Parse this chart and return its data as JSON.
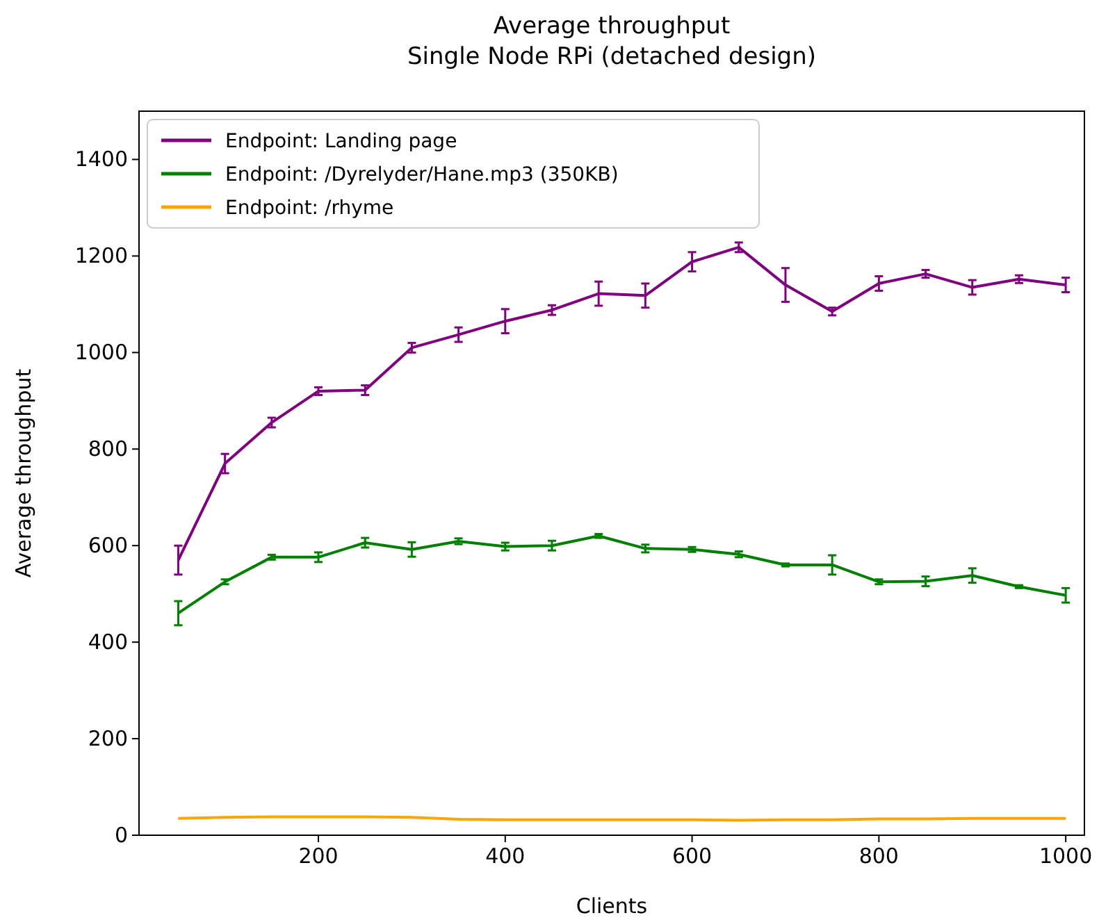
{
  "chart_data": {
    "type": "line",
    "title": "Average throughput\nSingle Node RPi (detached design)",
    "xlabel": "Clients",
    "ylabel": "Average throughput",
    "x": [
      50,
      100,
      150,
      200,
      250,
      300,
      350,
      400,
      450,
      500,
      550,
      600,
      650,
      700,
      750,
      800,
      850,
      900,
      950,
      1000
    ],
    "xlim": [
      8,
      1020
    ],
    "ylim": [
      0,
      1500
    ],
    "xticks": [
      200,
      400,
      600,
      800,
      1000
    ],
    "yticks": [
      0,
      200,
      400,
      600,
      800,
      1000,
      1200,
      1400
    ],
    "legend": "top left",
    "grid": false,
    "series": [
      {
        "name": "Endpoint: Landing page",
        "color": "#800080",
        "values": [
          570,
          770,
          855,
          920,
          922,
          1010,
          1037,
          1065,
          1088,
          1122,
          1118,
          1188,
          1218,
          1140,
          1085,
          1143,
          1163,
          1135,
          1152,
          1140
        ],
        "errors": [
          30,
          20,
          10,
          8,
          10,
          10,
          15,
          25,
          10,
          25,
          25,
          20,
          10,
          35,
          8,
          15,
          8,
          15,
          8,
          15
        ]
      },
      {
        "name": "Endpoint: /Dyrelyder/Hane.mp3 (350KB)",
        "color": "#008000",
        "values": [
          460,
          525,
          576,
          576,
          606,
          592,
          609,
          598,
          600,
          620,
          594,
          592,
          582,
          560,
          560,
          525,
          526,
          538,
          515,
          497
        ],
        "errors": [
          25,
          5,
          5,
          10,
          10,
          15,
          6,
          8,
          10,
          4,
          8,
          5,
          6,
          3,
          20,
          5,
          10,
          15,
          3,
          15
        ]
      },
      {
        "name": "Endpoint: /rhyme",
        "color": "#ffa500",
        "values": [
          35,
          37,
          38,
          38,
          38,
          37,
          33,
          32,
          32,
          32,
          32,
          32,
          31,
          32,
          32,
          34,
          34,
          35,
          35,
          35
        ]
      }
    ]
  }
}
